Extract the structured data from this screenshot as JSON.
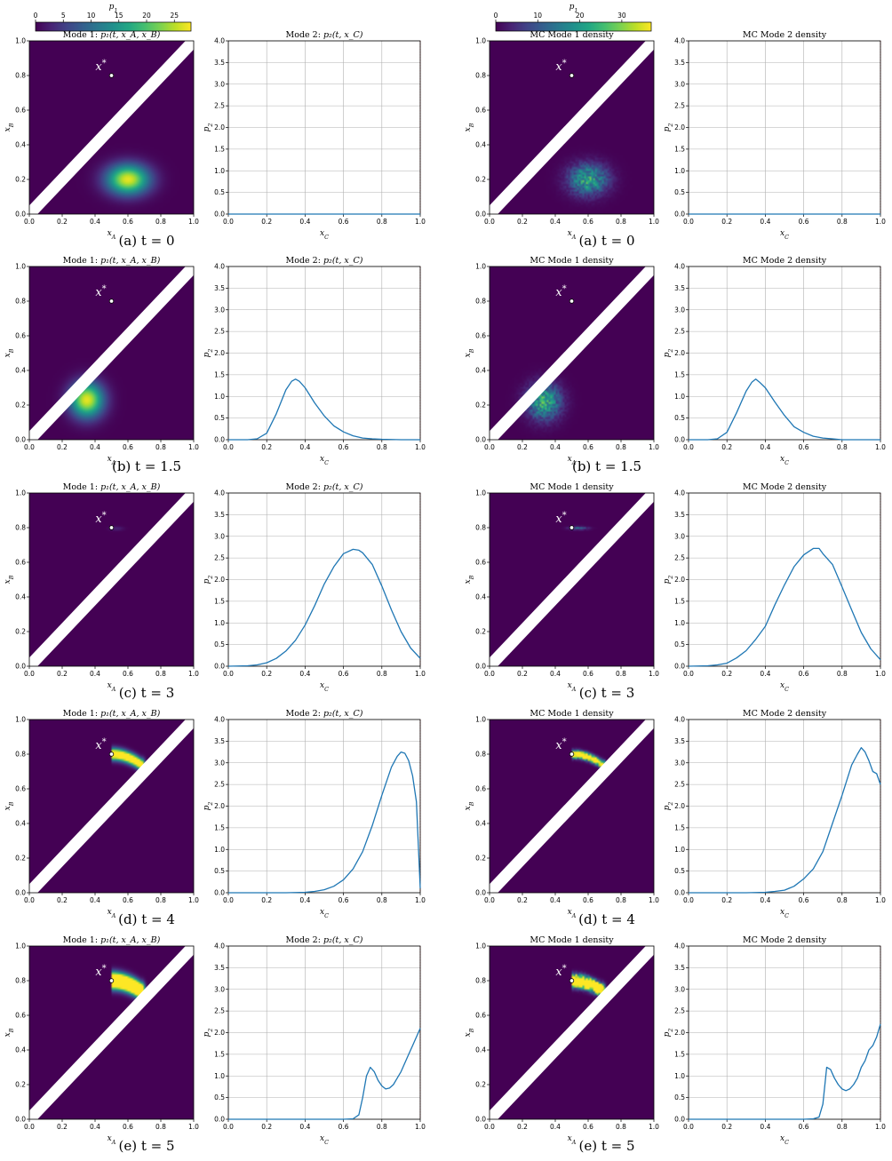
{
  "colors": {
    "viridis_low": "#440154",
    "viridis_high": "#fde725",
    "band": "#ffffff",
    "line": "#1f77b4",
    "grid": "#b0b0b0",
    "edge_marker": "#d62728"
  },
  "colorbars": [
    {
      "label": "p_1",
      "ticks": [
        "0",
        "5",
        "10",
        "15",
        "20",
        "25"
      ],
      "tick_values": [
        0,
        5,
        10,
        15,
        20,
        25
      ],
      "range": [
        0,
        28
      ]
    },
    {
      "label": "p_1",
      "ticks": [
        "0",
        "10",
        "20",
        "30"
      ],
      "tick_values": [
        0,
        10,
        20,
        30
      ],
      "range": [
        0,
        37
      ]
    }
  ],
  "columns": [
    {
      "left_title_prefix": "Mode 1: ",
      "left_title_math": "p₁(t, x_A, x_B)",
      "right_title_prefix": "Mode 2: ",
      "right_title_math": "p₂(t, x_C)",
      "noisy": false
    },
    {
      "left_title_prefix": "MC Mode 1 density",
      "left_title_math": "",
      "right_title_prefix": "MC Mode 2 density",
      "right_title_math": "",
      "noisy": true
    }
  ],
  "axes": {
    "heatmap_xlabel": "x_A",
    "heatmap_ylabel": "x_B",
    "line_xlabel": "x_C",
    "line_ylabel": "p_2",
    "heatmap_xticks": [
      "0.0",
      "0.2",
      "0.4",
      "0.6",
      "0.8",
      "1.0"
    ],
    "heatmap_yticks": [
      "0.0",
      "0.2",
      "0.4",
      "0.6",
      "0.8",
      "1.0"
    ],
    "line_xticks": [
      "0.0",
      "0.2",
      "0.4",
      "0.6",
      "0.8",
      "1.0"
    ],
    "line_yticks": [
      "0.0",
      "0.5",
      "1.0",
      "1.5",
      "2.0",
      "2.5",
      "3.0",
      "3.5",
      "4.0"
    ]
  },
  "marker": {
    "label": "x*",
    "x": 0.5,
    "y": 0.8
  },
  "chart_data": [
    {
      "type": "heatmap",
      "panel": "Mode 1 density",
      "snapshots": [
        {
          "caption": "(a) t = 0",
          "blob": {
            "cx": 0.6,
            "cy": 0.2,
            "sx": 0.09,
            "sy": 0.06,
            "peak": 27
          }
        },
        {
          "caption": "(b) t = 1.5",
          "blob": {
            "cx": 0.35,
            "cy": 0.23,
            "sx": 0.07,
            "sy": 0.07,
            "peak": 27
          }
        },
        {
          "caption": "(c) t = 3",
          "blob": {
            "cx": 0.53,
            "cy": 0.795,
            "sx": 0.03,
            "sy": 0.008,
            "peak": 3
          }
        },
        {
          "caption": "(d) t = 4",
          "arc": {
            "x0": 0.5,
            "x1": 0.68,
            "y0": 0.8,
            "y1": 0.74,
            "width": 0.022,
            "peak": 40
          }
        },
        {
          "caption": "(e) t = 5",
          "arc": {
            "x0": 0.5,
            "x1": 0.68,
            "y0": 0.8,
            "y1": 0.74,
            "width": 0.03,
            "peak": 60
          }
        }
      ]
    },
    {
      "type": "line",
      "panel": "Mode 2 density",
      "xlim": [
        0,
        1
      ],
      "ylim": [
        0,
        4
      ],
      "snapshots": [
        {
          "caption": "(a) t = 0",
          "x": [
            0.0,
            1.0
          ],
          "y": [
            0.0,
            0.0
          ]
        },
        {
          "caption": "(b) t = 1.5",
          "x": [
            0.0,
            0.1,
            0.15,
            0.2,
            0.25,
            0.3,
            0.33,
            0.35,
            0.37,
            0.4,
            0.45,
            0.5,
            0.55,
            0.6,
            0.65,
            0.7,
            0.75,
            0.8,
            0.9,
            1.0
          ],
          "y": [
            0.0,
            0.0,
            0.02,
            0.15,
            0.6,
            1.15,
            1.35,
            1.4,
            1.35,
            1.2,
            0.85,
            0.55,
            0.32,
            0.18,
            0.09,
            0.04,
            0.02,
            0.01,
            0.0,
            0.0
          ]
        },
        {
          "caption": "(c) t = 3",
          "x": [
            0.0,
            0.1,
            0.15,
            0.2,
            0.25,
            0.3,
            0.35,
            0.4,
            0.45,
            0.5,
            0.55,
            0.6,
            0.65,
            0.68,
            0.7,
            0.75,
            0.8,
            0.85,
            0.9,
            0.95,
            1.0
          ],
          "y": [
            0.0,
            0.01,
            0.03,
            0.08,
            0.18,
            0.35,
            0.6,
            0.95,
            1.4,
            1.9,
            2.3,
            2.6,
            2.7,
            2.68,
            2.62,
            2.35,
            1.85,
            1.3,
            0.8,
            0.42,
            0.18
          ]
        },
        {
          "caption": "(d) t = 4",
          "x": [
            0.0,
            0.3,
            0.4,
            0.45,
            0.5,
            0.55,
            0.6,
            0.65,
            0.7,
            0.75,
            0.8,
            0.85,
            0.88,
            0.9,
            0.92,
            0.94,
            0.96,
            0.98,
            1.0
          ],
          "y": [
            0.0,
            0.0,
            0.01,
            0.03,
            0.07,
            0.15,
            0.3,
            0.55,
            0.95,
            1.55,
            2.25,
            2.9,
            3.15,
            3.25,
            3.22,
            3.05,
            2.7,
            2.1,
            0.1
          ]
        },
        {
          "caption": "(e) t = 5",
          "x": [
            0.0,
            0.6,
            0.65,
            0.68,
            0.7,
            0.72,
            0.74,
            0.76,
            0.78,
            0.8,
            0.82,
            0.84,
            0.86,
            0.88,
            0.9,
            0.92,
            0.94,
            0.96,
            0.98,
            1.0
          ],
          "y": [
            0.0,
            0.0,
            0.01,
            0.1,
            0.5,
            1.0,
            1.2,
            1.1,
            0.9,
            0.77,
            0.7,
            0.72,
            0.8,
            0.95,
            1.1,
            1.3,
            1.5,
            1.7,
            1.9,
            2.1
          ]
        }
      ]
    },
    {
      "type": "heatmap",
      "panel": "MC Mode 1 density",
      "snapshots": [
        {
          "caption": "(a) t = 0",
          "blob": {
            "cx": 0.6,
            "cy": 0.2,
            "sx": 0.08,
            "sy": 0.06,
            "peak": 22
          }
        },
        {
          "caption": "(b) t = 1.5",
          "blob": {
            "cx": 0.33,
            "cy": 0.22,
            "sx": 0.07,
            "sy": 0.07,
            "peak": 22
          }
        },
        {
          "caption": "(c) t = 3",
          "blob": {
            "cx": 0.54,
            "cy": 0.797,
            "sx": 0.04,
            "sy": 0.006,
            "peak": 12
          }
        },
        {
          "caption": "(d) t = 4",
          "arc": {
            "x0": 0.5,
            "x1": 0.68,
            "y0": 0.8,
            "y1": 0.745,
            "width": 0.014,
            "peak": 60
          }
        },
        {
          "caption": "(e) t = 5",
          "arc": {
            "x0": 0.5,
            "x1": 0.68,
            "y0": 0.8,
            "y1": 0.745,
            "width": 0.022,
            "peak": 80
          }
        }
      ]
    },
    {
      "type": "line",
      "panel": "MC Mode 2 density",
      "xlim": [
        0,
        1
      ],
      "ylim": [
        0,
        4
      ],
      "snapshots": [
        {
          "caption": "(a) t = 0",
          "x": [
            0.0,
            1.0
          ],
          "y": [
            0.0,
            0.0
          ]
        },
        {
          "caption": "(b) t = 1.5",
          "x": [
            0.0,
            0.1,
            0.15,
            0.2,
            0.25,
            0.3,
            0.33,
            0.35,
            0.37,
            0.4,
            0.45,
            0.5,
            0.55,
            0.6,
            0.65,
            0.7,
            0.75,
            0.8,
            0.9,
            1.0
          ],
          "y": [
            0.0,
            0.0,
            0.02,
            0.17,
            0.62,
            1.12,
            1.33,
            1.4,
            1.33,
            1.2,
            0.87,
            0.56,
            0.3,
            0.17,
            0.08,
            0.04,
            0.02,
            0.0,
            0.0,
            0.0
          ]
        },
        {
          "caption": "(c) t = 3",
          "x": [
            0.0,
            0.1,
            0.15,
            0.2,
            0.25,
            0.3,
            0.35,
            0.4,
            0.45,
            0.5,
            0.55,
            0.6,
            0.65,
            0.68,
            0.7,
            0.75,
            0.8,
            0.85,
            0.9,
            0.95,
            1.0
          ],
          "y": [
            0.0,
            0.01,
            0.03,
            0.07,
            0.19,
            0.36,
            0.62,
            0.92,
            1.42,
            1.88,
            2.3,
            2.57,
            2.72,
            2.72,
            2.6,
            2.35,
            1.83,
            1.3,
            0.78,
            0.4,
            0.15
          ]
        },
        {
          "caption": "(d) t = 4",
          "x": [
            0.0,
            0.3,
            0.4,
            0.45,
            0.5,
            0.55,
            0.6,
            0.65,
            0.7,
            0.75,
            0.8,
            0.85,
            0.88,
            0.9,
            0.92,
            0.94,
            0.96,
            0.98,
            1.0
          ],
          "y": [
            0.0,
            0.0,
            0.01,
            0.03,
            0.06,
            0.15,
            0.32,
            0.55,
            0.95,
            1.6,
            2.25,
            2.95,
            3.2,
            3.35,
            3.25,
            3.05,
            2.8,
            2.75,
            2.5
          ]
        },
        {
          "caption": "(e) t = 5",
          "x": [
            0.0,
            0.6,
            0.65,
            0.68,
            0.7,
            0.72,
            0.74,
            0.76,
            0.78,
            0.8,
            0.82,
            0.84,
            0.86,
            0.88,
            0.9,
            0.92,
            0.94,
            0.96,
            0.98,
            1.0
          ],
          "y": [
            0.0,
            0.0,
            0.01,
            0.05,
            0.35,
            1.2,
            1.15,
            0.95,
            0.8,
            0.7,
            0.66,
            0.7,
            0.8,
            0.95,
            1.2,
            1.35,
            1.6,
            1.7,
            1.9,
            2.2
          ]
        }
      ]
    }
  ]
}
